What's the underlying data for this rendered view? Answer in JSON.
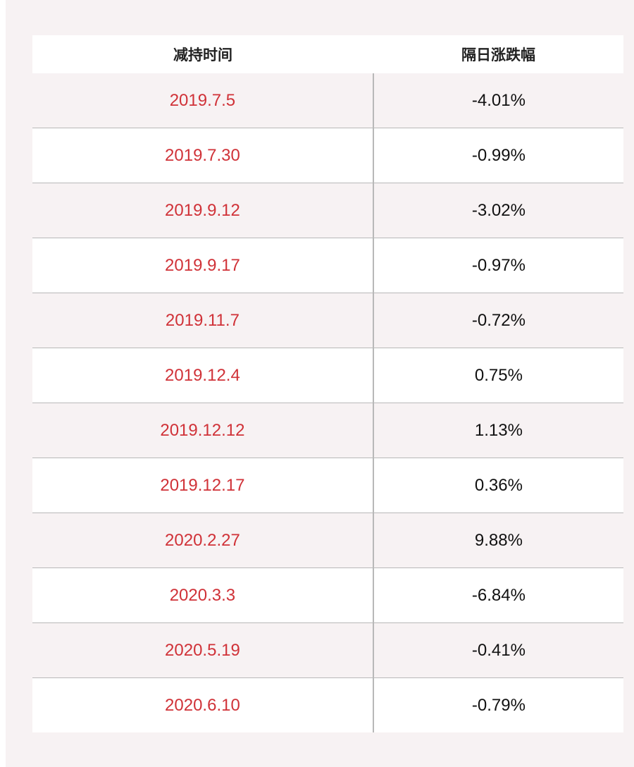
{
  "table": {
    "headers": [
      "减持时间",
      "隔日涨跌幅"
    ],
    "rows": [
      {
        "date": "2019.7.5",
        "change": "-4.01%"
      },
      {
        "date": "2019.7.30",
        "change": "-0.99%"
      },
      {
        "date": "2019.9.12",
        "change": "-3.02%"
      },
      {
        "date": "2019.9.17",
        "change": "-0.97%"
      },
      {
        "date": "2019.11.7",
        "change": "-0.72%"
      },
      {
        "date": "2019.12.4",
        "change": "0.75%"
      },
      {
        "date": "2019.12.12",
        "change": "1.13%"
      },
      {
        "date": "2019.12.17",
        "change": "0.36%"
      },
      {
        "date": "2020.2.27",
        "change": "9.88%"
      },
      {
        "date": "2020.3.3",
        "change": "-6.84%"
      },
      {
        "date": "2020.5.19",
        "change": "-0.41%"
      },
      {
        "date": "2020.6.10",
        "change": "-0.79%"
      }
    ]
  },
  "colors": {
    "date_text": "#d03238",
    "value_text": "#111111",
    "background": "#f7f2f3"
  }
}
